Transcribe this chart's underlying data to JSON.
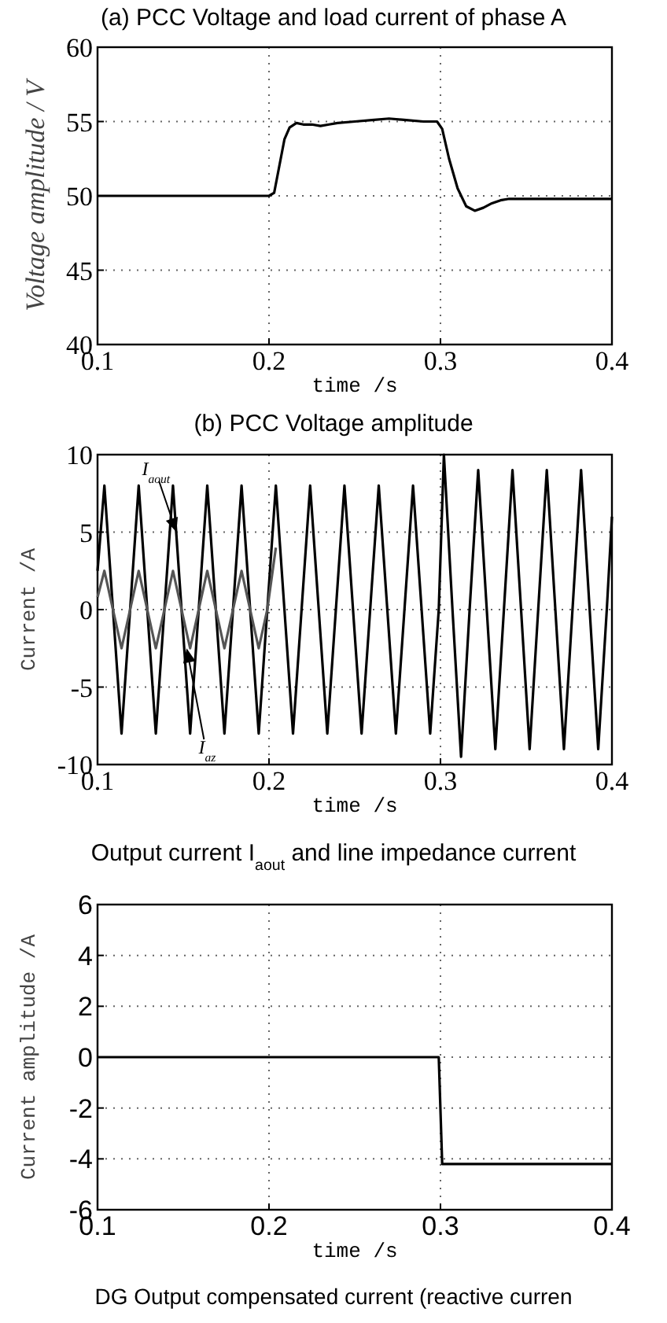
{
  "chart_data": [
    {
      "type": "line",
      "title": "(a) PCC Voltage and load current of phase A",
      "xlabel": "time /s",
      "ylabel": "Voltage amplitude / V",
      "xlim": [
        0.1,
        0.4
      ],
      "xticks": [
        0.1,
        0.2,
        0.3,
        0.4
      ],
      "ylim": [
        40,
        60
      ],
      "yticks": [
        40,
        45,
        50,
        55,
        60
      ],
      "grid": true,
      "x": [
        0.1,
        0.2,
        0.203,
        0.206,
        0.209,
        0.212,
        0.216,
        0.22,
        0.225,
        0.23,
        0.235,
        0.24,
        0.25,
        0.26,
        0.27,
        0.28,
        0.29,
        0.298,
        0.301,
        0.305,
        0.31,
        0.315,
        0.32,
        0.325,
        0.33,
        0.335,
        0.34,
        0.35,
        0.4
      ],
      "series": [
        {
          "color": "#000000",
          "values": [
            50,
            50,
            50.2,
            52,
            53.8,
            54.6,
            54.9,
            54.8,
            54.8,
            54.7,
            54.8,
            54.9,
            55,
            55.1,
            55.2,
            55.1,
            55,
            55,
            54.5,
            52.5,
            50.5,
            49.3,
            49,
            49.2,
            49.5,
            49.7,
            49.8,
            49.8,
            49.8
          ]
        }
      ]
    },
    {
      "type": "line",
      "title": "(b) PCC Voltage amplitude",
      "xlabel": "time /s",
      "ylabel": "Current  /A",
      "xlim": [
        0.1,
        0.4
      ],
      "xticks": [
        0.1,
        0.2,
        0.3,
        0.4
      ],
      "ylim": [
        -10,
        10
      ],
      "yticks": [
        -10,
        -5,
        0,
        5,
        10
      ],
      "grid": true,
      "x": [
        0.1,
        0.104,
        0.109,
        0.114,
        0.119,
        0.124,
        0.129,
        0.134,
        0.139,
        0.144,
        0.149,
        0.154,
        0.159,
        0.164,
        0.169,
        0.174,
        0.179,
        0.184,
        0.189,
        0.194,
        0.199,
        0.204,
        0.209,
        0.214,
        0.219,
        0.224,
        0.229,
        0.234,
        0.239,
        0.244,
        0.249,
        0.254,
        0.259,
        0.264,
        0.269,
        0.274,
        0.279,
        0.284,
        0.289,
        0.294,
        0.299,
        0.302,
        0.307,
        0.312,
        0.317,
        0.322,
        0.327,
        0.332,
        0.337,
        0.342,
        0.347,
        0.352,
        0.357,
        0.362,
        0.367,
        0.372,
        0.377,
        0.382,
        0.387,
        0.392,
        0.397,
        0.4
      ],
      "series": [
        {
          "color": "#000000",
          "values": [
            2.5,
            8,
            0,
            -8,
            0,
            8,
            0,
            -8,
            0,
            8,
            0,
            -8,
            0,
            8,
            0,
            -8,
            0,
            8,
            0,
            -8,
            0,
            8,
            0,
            -8,
            0,
            8,
            0,
            -8,
            0,
            8,
            0,
            -8,
            0,
            8,
            0,
            -8,
            0,
            8,
            0,
            -8,
            0,
            10,
            0,
            -9.5,
            0,
            9,
            0,
            -9,
            0,
            9,
            0,
            -9,
            0,
            9,
            0,
            -9,
            0,
            9,
            0,
            -9,
            0,
            6
          ]
        },
        {
          "color": "#555555",
          "values": [
            0.8,
            2.5,
            0,
            -2.5,
            0,
            2.5,
            0,
            -2.5,
            0,
            2.5,
            0,
            -2.5,
            0,
            2.5,
            0,
            -2.5,
            0,
            2.5,
            0,
            -2.5,
            0,
            4,
            null,
            null,
            null,
            null,
            null,
            null,
            null,
            null,
            null,
            null,
            null,
            null,
            null,
            null,
            null,
            null,
            null,
            null,
            null,
            null,
            null,
            null,
            null,
            null,
            null,
            null,
            null,
            null,
            null,
            null,
            null,
            null,
            null,
            null,
            null,
            null,
            null,
            null,
            null,
            null
          ]
        }
      ],
      "annotations": [
        {
          "text": "I$_{aout}$",
          "x": 0.146,
          "y": 5
        },
        {
          "text": "I$_{az}$",
          "x": 0.152,
          "y": -2.5
        }
      ]
    },
    {
      "type": "line",
      "title": "Output current I$_{aout}$  and line impedance current",
      "xlabel": "time /s",
      "ylabel": "Current amplitude /A",
      "xlim": [
        0.1,
        0.4
      ],
      "xticks": [
        0.1,
        0.2,
        0.3,
        0.4
      ],
      "ylim": [
        -6,
        6
      ],
      "yticks": [
        -6,
        -4,
        -2,
        0,
        2,
        4,
        6
      ],
      "grid": true,
      "x": [
        0.1,
        0.299,
        0.301,
        0.4
      ],
      "series": [
        {
          "color": "#000000",
          "values": [
            0,
            0,
            -4.2,
            -4.2
          ]
        }
      ],
      "annotations": [
        "DG Output compensated current (reactive curren"
      ]
    }
  ]
}
